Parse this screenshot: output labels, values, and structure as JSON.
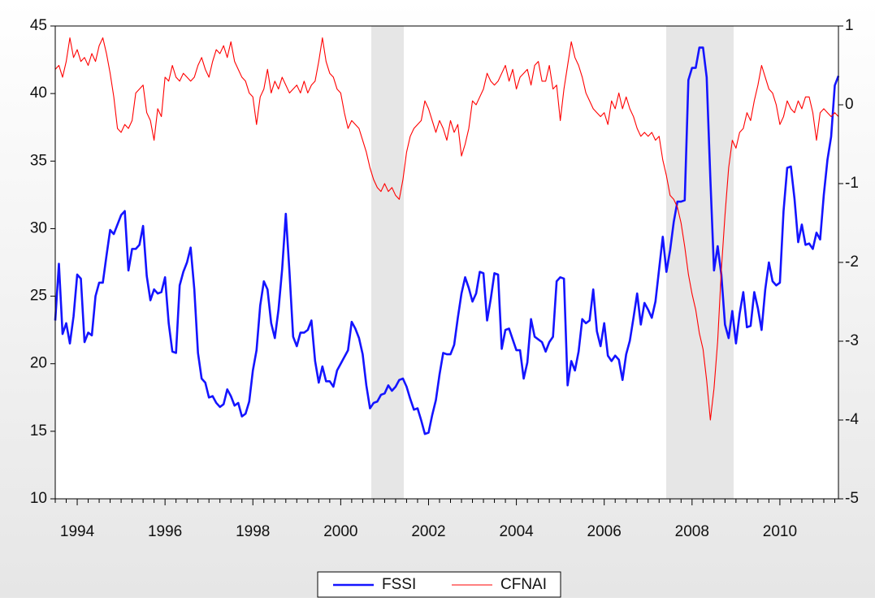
{
  "chart_data": {
    "type": "line",
    "categories": [
      null,
      null,
      null,
      null,
      null,
      null,
      "1994",
      null,
      null,
      null,
      null,
      null,
      null,
      null,
      null,
      null,
      null,
      null,
      null,
      null,
      null,
      null,
      null,
      null,
      null,
      null,
      null,
      null,
      null,
      null,
      "1996",
      null,
      null,
      null,
      null,
      null,
      null,
      null,
      null,
      null,
      null,
      null,
      null,
      null,
      null,
      null,
      null,
      null,
      null,
      null,
      null,
      null,
      null,
      null,
      "1998",
      null,
      null,
      null,
      null,
      null,
      null,
      null,
      null,
      null,
      null,
      null,
      null,
      null,
      null,
      null,
      null,
      null,
      null,
      null,
      null,
      null,
      null,
      null,
      "2000",
      null,
      null,
      null,
      null,
      null,
      null,
      null,
      null,
      null,
      null,
      null,
      null,
      null,
      null,
      null,
      null,
      null,
      null,
      null,
      null,
      null,
      null,
      null,
      "2002",
      null,
      null,
      null,
      null,
      null,
      null,
      null,
      null,
      null,
      null,
      null,
      null,
      null,
      null,
      null,
      null,
      null,
      null,
      null,
      null,
      null,
      null,
      null,
      "2004",
      null,
      null,
      null,
      null,
      null,
      null,
      null,
      null,
      null,
      null,
      null,
      null,
      null,
      null,
      null,
      null,
      null,
      null,
      null,
      null,
      null,
      null,
      null,
      "2006",
      null,
      null,
      null,
      null,
      null,
      null,
      null,
      null,
      null,
      null,
      null,
      null,
      null,
      null,
      null,
      null,
      null,
      null,
      null,
      null,
      null,
      null,
      null,
      "2008",
      null,
      null,
      null,
      null,
      null,
      null,
      null,
      null,
      null,
      null,
      null,
      null,
      null,
      null,
      null,
      null,
      null,
      null,
      null,
      null,
      null,
      null,
      null,
      "2010",
      null,
      null,
      null,
      null,
      null,
      null,
      null,
      null,
      null,
      null,
      null,
      null,
      null,
      null,
      null,
      null
    ],
    "series": [
      {
        "name": "FSSI",
        "color": "#1414ff",
        "values": [
          23.2,
          27.4,
          22.2,
          23,
          21.5,
          23.5,
          26.6,
          26.3,
          21.6,
          22.3,
          22.1,
          25,
          26,
          26,
          28,
          29.9,
          29.6,
          30.3,
          31,
          31.3,
          26.9,
          28.5,
          28.5,
          28.8,
          30.2,
          26.5,
          24.7,
          25.5,
          25.2,
          25.3,
          26.4,
          23,
          20.9,
          20.8,
          25.8,
          26.8,
          27.5,
          28.6,
          25.5,
          20.8,
          18.9,
          18.6,
          17.5,
          17.6,
          17.1,
          16.8,
          17,
          18.1,
          17.6,
          16.9,
          17.1,
          16.1,
          16.3,
          17.2,
          19.5,
          21,
          24.3,
          26.1,
          25.5,
          23,
          21.9,
          24,
          27,
          31.1,
          26.8,
          22,
          21.3,
          22.3,
          22.3,
          22.5,
          23.2,
          20.2,
          18.6,
          19.8,
          18.7,
          18.7,
          18.3,
          19.5,
          20,
          20.5,
          21,
          23.1,
          22.6,
          21.9,
          20.7,
          18.4,
          16.7,
          17.1,
          17.2,
          17.7,
          17.8,
          18.4,
          18,
          18.3,
          18.8,
          18.9,
          18.3,
          17.4,
          16.6,
          16.7,
          15.8,
          14.8,
          14.9,
          16.2,
          17.3,
          19.2,
          20.8,
          20.7,
          20.7,
          21.4,
          23.4,
          25.2,
          26.4,
          25.6,
          24.6,
          25.2,
          26.8,
          26.7,
          23.2,
          24.8,
          26.7,
          26.6,
          21.1,
          22.5,
          22.6,
          21.8,
          21,
          21,
          18.9,
          20.1,
          23.3,
          22,
          21.8,
          21.6,
          20.9,
          21.6,
          22,
          26.1,
          26.4,
          26.3,
          18.4,
          20.2,
          19.5,
          20.9,
          23.3,
          23,
          23.2,
          25.5,
          22.4,
          21.3,
          23,
          20.6,
          20.2,
          20.6,
          20.3,
          18.8,
          20.7,
          21.7,
          23.4,
          25.2,
          22.9,
          24.5,
          24,
          23.4,
          24.6,
          27,
          29.4,
          26.8,
          28.4,
          30.5,
          32,
          32,
          32.1,
          41,
          41.9,
          41.9,
          43.4,
          43.4,
          41.2,
          33.7,
          26.9,
          28.7,
          26.6,
          22.9,
          21.9,
          23.9,
          21.5,
          23.7,
          25.3,
          22.7,
          22.8,
          25.3,
          24.1,
          22.5,
          25.5,
          27.5,
          26.1,
          25.8,
          26,
          31.3,
          34.5,
          34.6,
          32.2,
          29,
          30.3,
          28.8,
          28.9,
          28.5,
          29.7,
          29.2,
          32.5,
          35.1,
          36.8,
          40.6,
          41.3
        ]
      },
      {
        "name": "CFNAI",
        "color": "#ff0000",
        "axis": "y2",
        "values": [
          0.45,
          0.5,
          0.35,
          0.55,
          0.85,
          0.6,
          0.7,
          0.55,
          0.6,
          0.5,
          0.65,
          0.55,
          0.75,
          0.85,
          0.65,
          0.4,
          0.1,
          -0.3,
          -0.35,
          -0.25,
          -0.3,
          -0.2,
          0.15,
          0.2,
          0.25,
          -0.1,
          -0.2,
          -0.45,
          -0.05,
          -0.15,
          0.35,
          0.3,
          0.5,
          0.35,
          0.3,
          0.4,
          0.35,
          0.3,
          0.35,
          0.5,
          0.6,
          0.45,
          0.35,
          0.55,
          0.7,
          0.65,
          0.75,
          0.6,
          0.8,
          0.55,
          0.45,
          0.35,
          0.3,
          0.15,
          0.1,
          -0.25,
          0.1,
          0.2,
          0.45,
          0.15,
          0.3,
          0.2,
          0.35,
          0.25,
          0.15,
          0.2,
          0.25,
          0.15,
          0.3,
          0.15,
          0.25,
          0.3,
          0.55,
          0.85,
          0.55,
          0.4,
          0.35,
          0.2,
          0.15,
          -0.1,
          -0.3,
          -0.2,
          -0.25,
          -0.3,
          -0.45,
          -0.6,
          -0.8,
          -0.95,
          -1.05,
          -1.1,
          -1.0,
          -1.1,
          -1.05,
          -1.15,
          -1.2,
          -0.95,
          -0.6,
          -0.4,
          -0.3,
          -0.25,
          -0.2,
          0.05,
          -0.05,
          -0.2,
          -0.35,
          -0.2,
          -0.3,
          -0.45,
          -0.2,
          -0.35,
          -0.25,
          -0.65,
          -0.5,
          -0.3,
          0.05,
          0.0,
          0.1,
          0.2,
          0.4,
          0.3,
          0.25,
          0.3,
          0.4,
          0.5,
          0.3,
          0.45,
          0.2,
          0.35,
          0.4,
          0.45,
          0.25,
          0.5,
          0.55,
          0.3,
          0.3,
          0.5,
          0.2,
          0.25,
          -0.2,
          0.2,
          0.5,
          0.8,
          0.6,
          0.5,
          0.35,
          0.15,
          0.05,
          -0.05,
          -0.1,
          -0.15,
          -0.1,
          -0.25,
          0.05,
          -0.05,
          0.15,
          -0.05,
          0.1,
          -0.05,
          -0.15,
          -0.3,
          -0.4,
          -0.35,
          -0.4,
          -0.35,
          -0.45,
          -0.4,
          -0.7,
          -0.9,
          -1.15,
          -1.2,
          -1.3,
          -1.5,
          -1.8,
          -2.15,
          -2.4,
          -2.6,
          -2.9,
          -3.1,
          -3.5,
          -4.0,
          -3.6,
          -3.0,
          -2.1,
          -1.4,
          -0.8,
          -0.45,
          -0.55,
          -0.35,
          -0.3,
          -0.1,
          -0.2,
          0.05,
          0.25,
          0.5,
          0.35,
          0.2,
          0.15,
          0.0,
          -0.25,
          -0.15,
          0.05,
          -0.05,
          -0.1,
          0.05,
          -0.05,
          0.1,
          0.1,
          -0.1,
          -0.45,
          -0.1,
          -0.05,
          -0.1,
          -0.15,
          -0.1,
          -0.15
        ]
      }
    ],
    "ylim": [
      10,
      45
    ],
    "yticks": [
      10,
      15,
      20,
      25,
      30,
      35,
      40,
      45
    ],
    "y2lim": [
      -5,
      1
    ],
    "y2ticks": [
      -5,
      -4,
      -3,
      -2,
      -1,
      0,
      1
    ],
    "grid": false
  }
}
